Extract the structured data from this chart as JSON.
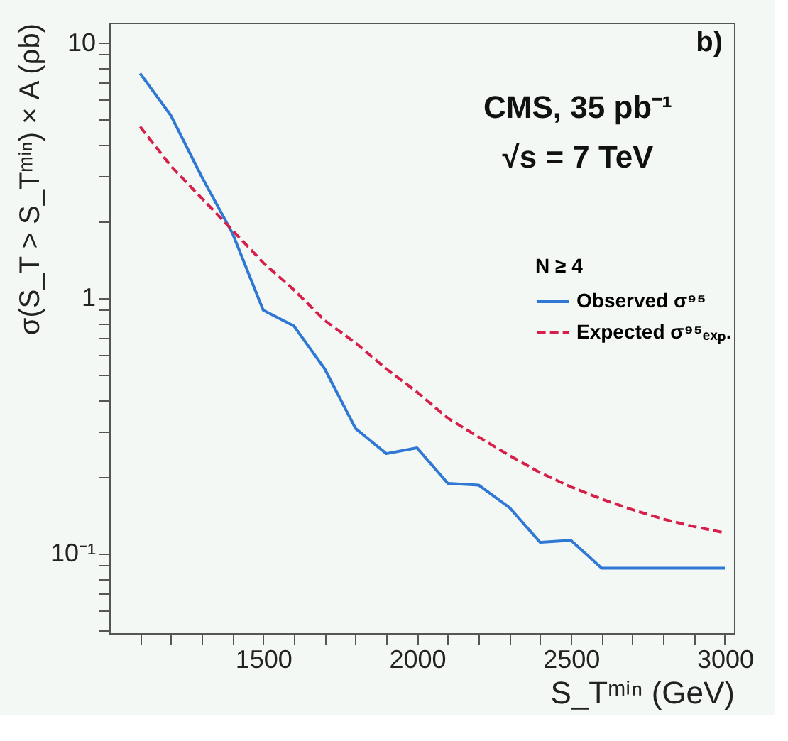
{
  "chart_data": {
    "type": "line",
    "xlabel": "S_Tᵐⁱⁿ (GeV)",
    "ylabel": "σ(S_T > S_Tᵐⁱⁿ) × A (ρb)",
    "legend_title": "N ≥ 4",
    "annotations": [
      "b)",
      "CMS, 35 pb⁻¹",
      "√s = 7 TeV"
    ],
    "x": [
      1100,
      1200,
      1300,
      1400,
      1500,
      1600,
      1700,
      1800,
      1900,
      2000,
      2100,
      2200,
      2300,
      2400,
      2500,
      2600,
      2700,
      2800,
      2900,
      3000
    ],
    "series": [
      {
        "name": "Observed σ⁹⁵",
        "color": "#2f78d4",
        "line_style": "solid",
        "values": [
          7.6,
          5.2,
          3.0,
          1.8,
          0.9,
          0.78,
          0.53,
          0.31,
          0.247,
          0.26,
          0.189,
          0.186,
          0.152,
          0.111,
          0.113,
          0.088,
          0.088,
          0.088,
          0.088,
          0.088
        ]
      },
      {
        "name": "Expected σ⁹⁵ₑₓₚ.",
        "color": "#d6204a",
        "line_style": "dashed",
        "values": [
          4.7,
          3.3,
          2.47,
          1.85,
          1.38,
          1.08,
          0.82,
          0.67,
          0.53,
          0.43,
          0.34,
          0.287,
          0.243,
          0.208,
          0.183,
          0.164,
          0.149,
          0.137,
          0.128,
          0.121
        ]
      }
    ],
    "log": "y",
    "xlim": [
      1000,
      3030
    ],
    "ylim": [
      0.049,
      12
    ],
    "xticks": [
      {
        "value": 1100,
        "label": null
      },
      {
        "value": 1200,
        "label": null
      },
      {
        "value": 1300,
        "label": null
      },
      {
        "value": 1400,
        "label": null
      },
      1500,
      {
        "value": 1600,
        "label": null
      },
      {
        "value": 1700,
        "label": null
      },
      {
        "value": 1800,
        "label": null
      },
      {
        "value": 1900,
        "label": null
      },
      2000,
      {
        "value": 2100,
        "label": null
      },
      {
        "value": 2200,
        "label": null
      },
      {
        "value": 2300,
        "label": null
      },
      {
        "value": 2400,
        "label": null
      },
      2500,
      {
        "value": 2600,
        "label": null
      },
      {
        "value": 2700,
        "label": null
      },
      {
        "value": 2800,
        "label": null
      },
      {
        "value": 2900,
        "label": null
      },
      3000
    ],
    "yticks": [
      {
        "value": 0.05,
        "label": null
      },
      {
        "value": 0.06,
        "label": null
      },
      {
        "value": 0.07,
        "label": null
      },
      {
        "value": 0.08,
        "label": null
      },
      {
        "value": 0.09,
        "label": null
      },
      {
        "value": 0.1,
        "label": "10⁻¹"
      },
      {
        "value": 0.2,
        "label": null
      },
      {
        "value": 0.3,
        "label": null
      },
      {
        "value": 0.4,
        "label": null
      },
      {
        "value": 0.5,
        "label": null
      },
      {
        "value": 0.6,
        "label": null
      },
      {
        "value": 0.7,
        "label": null
      },
      {
        "value": 0.8,
        "label": null
      },
      {
        "value": 0.9,
        "label": null
      },
      1,
      {
        "value": 2,
        "label": null
      },
      {
        "value": 3,
        "label": null
      },
      {
        "value": 4,
        "label": null
      },
      {
        "value": 5,
        "label": null
      },
      {
        "value": 6,
        "label": null
      },
      {
        "value": 7,
        "label": null
      },
      {
        "value": 8,
        "label": null
      },
      {
        "value": 9,
        "label": null
      },
      10
    ],
    "grid": false,
    "legend": "right"
  }
}
